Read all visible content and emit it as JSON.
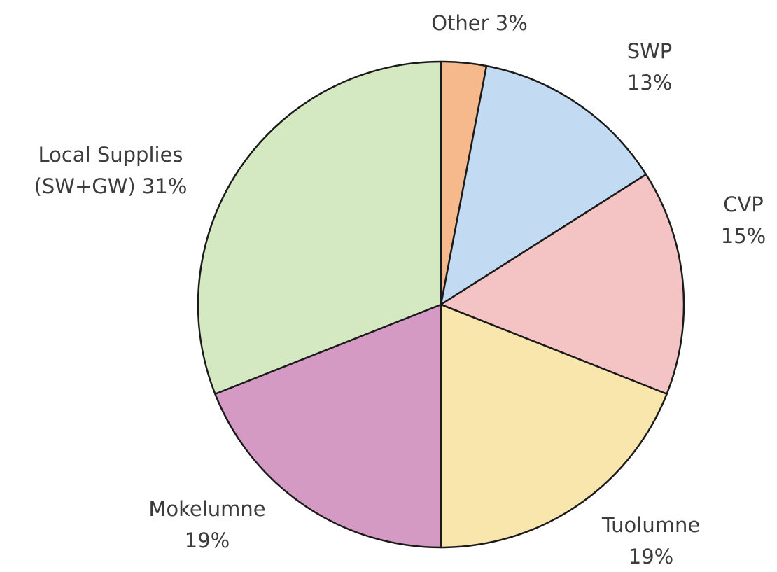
{
  "chart_data": {
    "type": "pie",
    "start_angle_deg": 0,
    "direction": "clockwise",
    "slices": [
      {
        "key": "other",
        "label_lines": [
          "Other 3%"
        ],
        "value": 3,
        "color": "#f5b98c"
      },
      {
        "key": "swp",
        "label_lines": [
          "SWP",
          "13%"
        ],
        "value": 13,
        "color": "#c2dbf2"
      },
      {
        "key": "cvp",
        "label_lines": [
          "CVP",
          "15%"
        ],
        "value": 15,
        "color": "#f4c3c3"
      },
      {
        "key": "tuolumne",
        "label_lines": [
          "Tuolumne",
          "19%"
        ],
        "value": 19,
        "color": "#f8e6ad"
      },
      {
        "key": "mokelumne",
        "label_lines": [
          "Mokelumne",
          "19%"
        ],
        "value": 19,
        "color": "#d59ac4"
      },
      {
        "key": "local-supplies",
        "label_lines": [
          "Local Supplies",
          "(SW+GW) 31%"
        ],
        "value": 31,
        "color": "#d4e8c2"
      }
    ]
  }
}
